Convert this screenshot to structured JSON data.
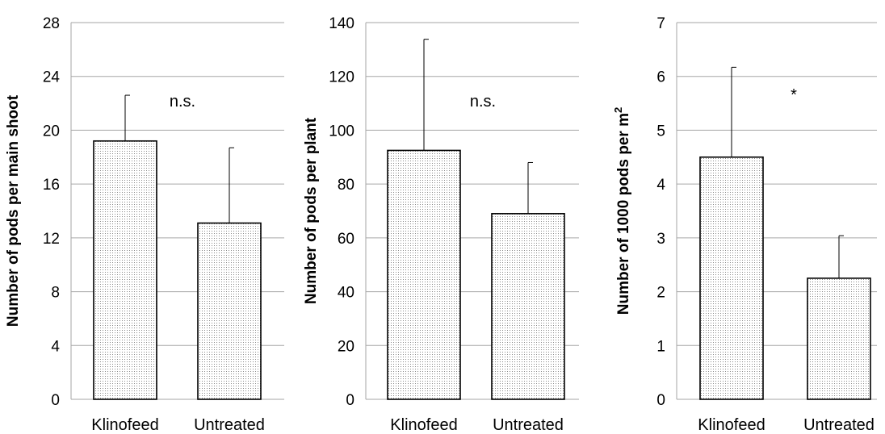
{
  "chart_data": [
    {
      "type": "bar",
      "categories": [
        "Klinofeed",
        "Untreated"
      ],
      "values": [
        19.2,
        13.1
      ],
      "error": [
        3.4,
        5.6
      ],
      "ylabel": "Number of pods per main shoot",
      "ylabel_superscript": "",
      "ylim": [
        0,
        28
      ],
      "yticks": [
        0,
        4,
        8,
        12,
        16,
        20,
        24,
        28
      ],
      "annotation": "n.s.",
      "grid": true
    },
    {
      "type": "bar",
      "categories": [
        "Klinofeed",
        "Untreated"
      ],
      "values": [
        92.5,
        69.0
      ],
      "error": [
        41.3,
        19.0
      ],
      "ylabel": "Number of pods per plant",
      "ylabel_superscript": "",
      "ylim": [
        0,
        140
      ],
      "yticks": [
        0,
        20,
        40,
        60,
        80,
        100,
        120,
        140
      ],
      "annotation": "n.s.",
      "grid": true
    },
    {
      "type": "bar",
      "categories": [
        "Klinofeed",
        "Untreated"
      ],
      "values": [
        4.5,
        2.25
      ],
      "error": [
        1.67,
        0.79
      ],
      "ylabel": "Number of 1000 pods per m",
      "ylabel_superscript": "2",
      "ylim": [
        0,
        7
      ],
      "yticks": [
        0,
        1,
        2,
        3,
        4,
        5,
        6,
        7
      ],
      "annotation": "*",
      "grid": true
    }
  ]
}
